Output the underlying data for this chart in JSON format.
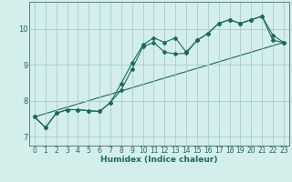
{
  "xlabel": "Humidex (Indice chaleur)",
  "bg_color": "#d4eeec",
  "grid_color": "#a8ccca",
  "line_color": "#1a6b5a",
  "spine_color": "#5a8080",
  "xlim": [
    -0.5,
    23.5
  ],
  "ylim": [
    6.75,
    10.75
  ],
  "xticks": [
    0,
    1,
    2,
    3,
    4,
    5,
    6,
    7,
    8,
    9,
    10,
    11,
    12,
    13,
    14,
    15,
    16,
    17,
    18,
    19,
    20,
    21,
    22,
    23
  ],
  "yticks": [
    7,
    8,
    9,
    10
  ],
  "series1_x": [
    0,
    1,
    2,
    3,
    4,
    5,
    6,
    7,
    8,
    9,
    10,
    11,
    12,
    13,
    14,
    15,
    16,
    17,
    18,
    19,
    20,
    21,
    22,
    23
  ],
  "series1_y": [
    7.55,
    7.25,
    7.65,
    7.75,
    7.75,
    7.72,
    7.7,
    7.95,
    8.3,
    8.88,
    9.5,
    9.62,
    9.35,
    9.3,
    9.32,
    9.68,
    9.87,
    10.15,
    10.25,
    10.15,
    10.25,
    10.35,
    9.68,
    9.62
  ],
  "series2_x": [
    0,
    1,
    2,
    3,
    4,
    5,
    6,
    7,
    8,
    9,
    10,
    11,
    12,
    13,
    14,
    15,
    16,
    17,
    18,
    19,
    20,
    21,
    22,
    23
  ],
  "series2_y": [
    7.55,
    7.25,
    7.65,
    7.75,
    7.75,
    7.72,
    7.7,
    7.95,
    8.48,
    9.05,
    9.55,
    9.75,
    9.62,
    9.75,
    9.35,
    9.68,
    9.87,
    10.15,
    10.25,
    10.15,
    10.25,
    10.35,
    9.82,
    9.62
  ],
  "series3_x": [
    0,
    23
  ],
  "series3_y": [
    7.55,
    9.62
  ],
  "tick_fontsize": 5.5,
  "xlabel_fontsize": 6.5
}
